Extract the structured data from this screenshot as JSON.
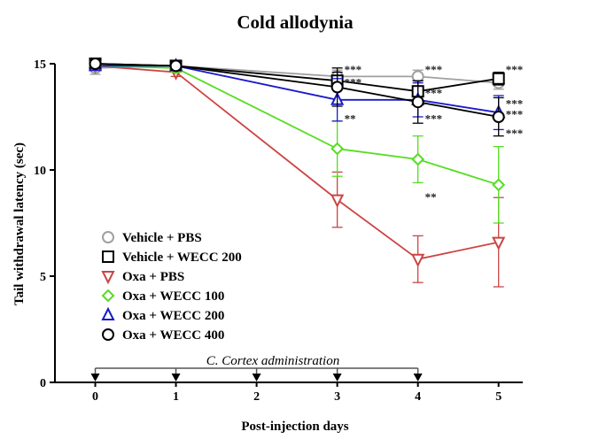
{
  "chart_data": {
    "type": "line",
    "title": "Cold allodynia",
    "xlabel": "Post-injection days",
    "ylabel": "Tail withdrawal latency (sec)",
    "x": [
      0,
      1,
      2,
      3,
      4,
      5
    ],
    "xlim": [
      -0.5,
      5.3
    ],
    "ylim": [
      0,
      15
    ],
    "xticks": [
      "0",
      "1",
      "2",
      "3",
      "4",
      "5"
    ],
    "yticks": [
      "0",
      "5",
      "10",
      "15"
    ],
    "annotation": "C. Cortex administration",
    "dosing_days": [
      0,
      1,
      2,
      3,
      4
    ],
    "annotation_span": [
      0,
      4
    ],
    "series": [
      {
        "name": "Vehicle + PBS",
        "color": "#a0a0a0",
        "marker": "circle",
        "x": [
          0,
          1,
          3,
          4,
          5
        ],
        "values": [
          14.8,
          14.9,
          14.4,
          14.4,
          14.1
        ],
        "errors": [
          0.3,
          0.2,
          0.3,
          0.3,
          0.3
        ]
      },
      {
        "name": "Vehicle + WECC 200",
        "color": "#000000",
        "marker": "square",
        "x": [
          0,
          1,
          3,
          4,
          5
        ],
        "values": [
          15.0,
          14.9,
          14.2,
          13.7,
          14.3
        ],
        "errors": [
          0.2,
          0.2,
          0.4,
          0.5,
          0.3
        ]
      },
      {
        "name": "Oxa + PBS",
        "color": "#cc4444",
        "marker": "triangle-down",
        "x": [
          0,
          1,
          3,
          4,
          5
        ],
        "values": [
          14.9,
          14.6,
          8.6,
          5.8,
          6.6
        ],
        "errors": [
          0.2,
          0.2,
          1.3,
          1.1,
          2.1
        ]
      },
      {
        "name": "Oxa + WECC 100",
        "color": "#55dd22",
        "marker": "diamond",
        "x": [
          0,
          1,
          3,
          4,
          5
        ],
        "values": [
          14.9,
          14.8,
          11.0,
          10.5,
          9.3
        ],
        "errors": [
          0.2,
          0.2,
          1.3,
          1.1,
          1.8
        ]
      },
      {
        "name": "Oxa + WECC 200",
        "color": "#1a1acc",
        "marker": "triangle-up",
        "x": [
          0,
          1,
          3,
          4,
          5
        ],
        "values": [
          14.9,
          14.9,
          13.3,
          13.3,
          12.7
        ],
        "errors": [
          0.2,
          0.2,
          1.0,
          0.8,
          0.8
        ]
      },
      {
        "name": "Oxa + WECC 400",
        "color": "#000000",
        "marker": "circle",
        "x": [
          0,
          1,
          3,
          4,
          5
        ],
        "values": [
          15.0,
          14.9,
          13.9,
          13.2,
          12.5
        ],
        "errors": [
          0.2,
          0.2,
          0.9,
          1.0,
          0.9
        ]
      }
    ],
    "significance": [
      {
        "x": 3,
        "y": 14.7,
        "text": "***"
      },
      {
        "x": 3,
        "y": 14.1,
        "text": "***"
      },
      {
        "x": 3,
        "y": 12.4,
        "text": "**"
      },
      {
        "x": 4,
        "y": 14.7,
        "text": "***"
      },
      {
        "x": 4,
        "y": 13.6,
        "text": "***"
      },
      {
        "x": 4,
        "y": 12.4,
        "text": "***"
      },
      {
        "x": 4,
        "y": 8.7,
        "text": "**"
      },
      {
        "x": 5,
        "y": 14.7,
        "text": "***"
      },
      {
        "x": 5,
        "y": 13.1,
        "text": "***"
      },
      {
        "x": 5,
        "y": 12.6,
        "text": "***"
      },
      {
        "x": 5,
        "y": 11.7,
        "text": "***"
      }
    ]
  }
}
